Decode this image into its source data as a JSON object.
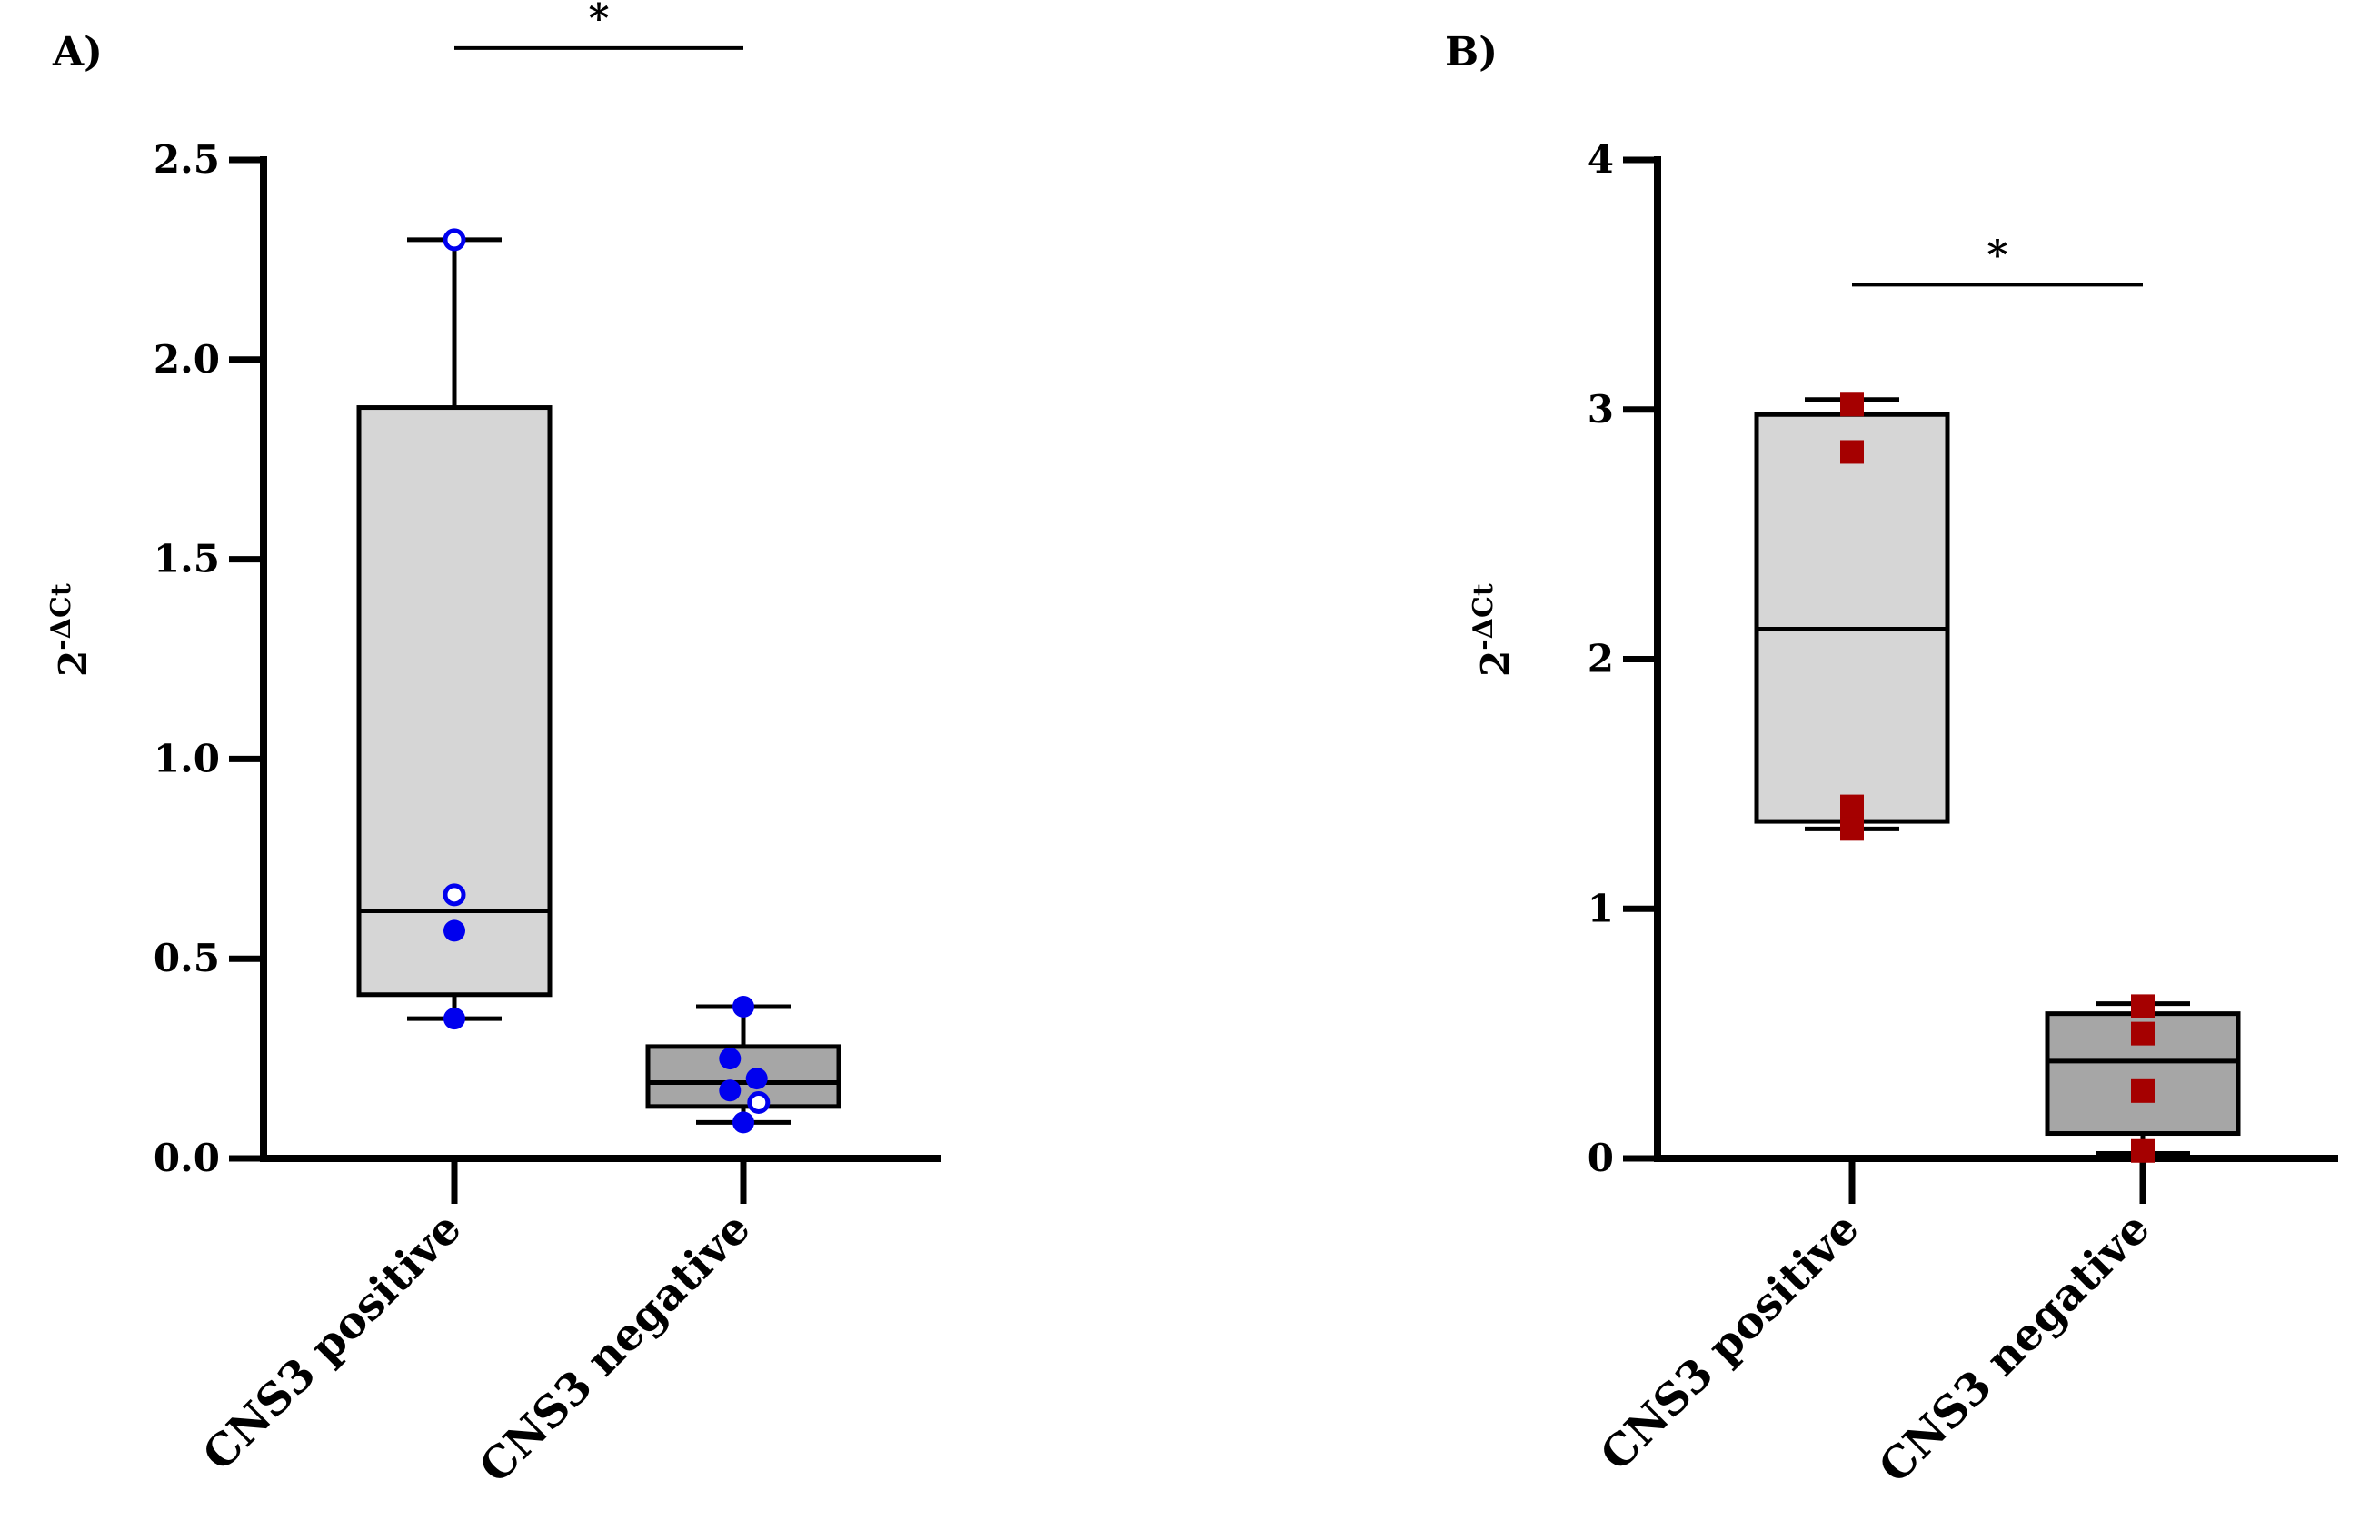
{
  "chart_data": [
    {
      "type": "box",
      "panel_label": "A)",
      "ylabel_base": "2",
      "ylabel_sup": "-ΔCt",
      "ylim": [
        0,
        2.5
      ],
      "yticks": [
        0.0,
        0.5,
        1.0,
        1.5,
        2.0,
        2.5
      ],
      "ytick_labels": [
        "0.0",
        "0.5",
        "1.0",
        "1.5",
        "2.0",
        "2.5"
      ],
      "categories": [
        "CNS3 positive",
        "CNS3 negative"
      ],
      "boxes": [
        {
          "category": "CNS3 positive",
          "min": 0.35,
          "q1": 0.41,
          "median": 0.62,
          "q3": 1.88,
          "max": 2.3,
          "fill": "#d6d6d6"
        },
        {
          "category": "CNS3 negative",
          "min": 0.09,
          "q1": 0.13,
          "median": 0.19,
          "q3": 0.28,
          "max": 0.38,
          "fill": "#a6a6a6"
        }
      ],
      "points": [
        {
          "category": "CNS3 positive",
          "y": 2.3,
          "offset": 0.0,
          "hollow": true
        },
        {
          "category": "CNS3 positive",
          "y": 0.66,
          "offset": 0.0,
          "hollow": true
        },
        {
          "category": "CNS3 positive",
          "y": 0.57,
          "offset": 0.0,
          "hollow": false
        },
        {
          "category": "CNS3 positive",
          "y": 0.35,
          "offset": 0.0,
          "hollow": false
        },
        {
          "category": "CNS3 negative",
          "y": 0.38,
          "offset": 0.0,
          "hollow": false
        },
        {
          "category": "CNS3 negative",
          "y": 0.25,
          "offset": -0.07,
          "hollow": false
        },
        {
          "category": "CNS3 negative",
          "y": 0.2,
          "offset": 0.07,
          "hollow": false
        },
        {
          "category": "CNS3 negative",
          "y": 0.17,
          "offset": -0.07,
          "hollow": false
        },
        {
          "category": "CNS3 negative",
          "y": 0.14,
          "offset": 0.08,
          "hollow": true
        },
        {
          "category": "CNS3 negative",
          "y": 0.09,
          "offset": 0.0,
          "hollow": false
        }
      ],
      "point_color": "#0000ee",
      "point_marker": "circle",
      "significance": {
        "label": "*",
        "from": "CNS3 positive",
        "to": "CNS3 negative",
        "y": 2.78
      }
    },
    {
      "type": "box",
      "panel_label": "B)",
      "ylabel_base": "2",
      "ylabel_sup": "-ΔCt",
      "ylim": [
        0,
        4
      ],
      "yticks": [
        0,
        1,
        2,
        3,
        4
      ],
      "ytick_labels": [
        "0",
        "1",
        "2",
        "3",
        "4"
      ],
      "categories": [
        "CNS3 positive",
        "CNS3 negative"
      ],
      "boxes": [
        {
          "category": "CNS3 positive",
          "min": 1.32,
          "q1": 1.35,
          "median": 2.12,
          "q3": 2.98,
          "max": 3.04,
          "fill": "#d6d6d6"
        },
        {
          "category": "CNS3 negative",
          "min": 0.02,
          "q1": 0.1,
          "median": 0.39,
          "q3": 0.58,
          "max": 0.62,
          "fill": "#a6a6a6"
        }
      ],
      "points": [
        {
          "category": "CNS3 positive",
          "y": 3.02,
          "offset": 0.0,
          "hollow": false
        },
        {
          "category": "CNS3 positive",
          "y": 2.83,
          "offset": 0.0,
          "hollow": false
        },
        {
          "category": "CNS3 positive",
          "y": 1.41,
          "offset": 0.0,
          "hollow": false
        },
        {
          "category": "CNS3 positive",
          "y": 1.32,
          "offset": 0.0,
          "hollow": false
        },
        {
          "category": "CNS3 negative",
          "y": 0.61,
          "offset": 0.0,
          "hollow": false
        },
        {
          "category": "CNS3 negative",
          "y": 0.5,
          "offset": 0.0,
          "hollow": false
        },
        {
          "category": "CNS3 negative",
          "y": 0.27,
          "offset": 0.0,
          "hollow": false
        },
        {
          "category": "CNS3 negative",
          "y": 0.03,
          "offset": 0.0,
          "hollow": false
        }
      ],
      "point_color": "#a50000",
      "point_marker": "square",
      "significance": {
        "label": "*",
        "from": "CNS3 positive",
        "to": "CNS3 negative",
        "y": 3.5
      }
    }
  ]
}
